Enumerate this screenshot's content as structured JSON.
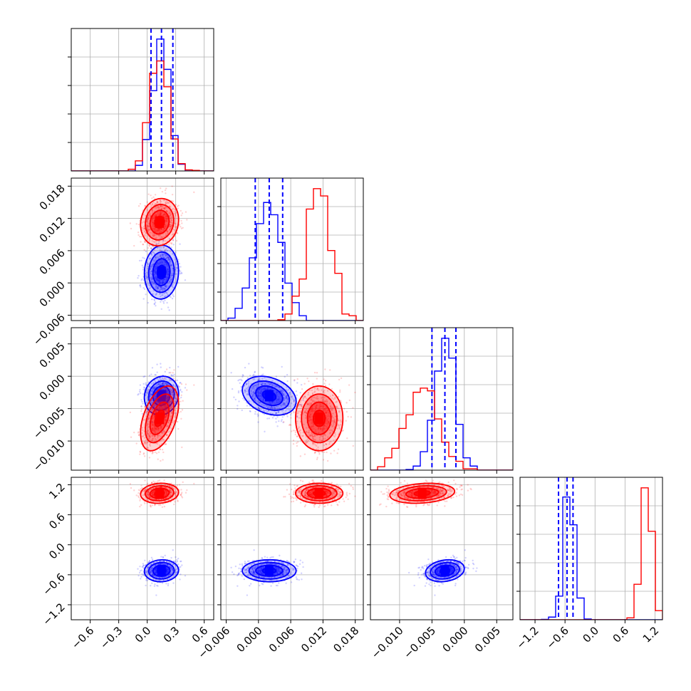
{
  "chart_data": {
    "type": "corner",
    "title": "",
    "n_params": 4,
    "series": [
      {
        "name": "blue",
        "color": "#0000ff",
        "mean": [
          0.15,
          0.002,
          -0.003,
          -0.52
        ],
        "std": [
          0.09,
          0.0025,
          0.0015,
          0.11
        ],
        "corr": [
          [
            1,
            0.05,
            0.1,
            0.05
          ],
          [
            0.05,
            1,
            -0.3,
            0.0
          ],
          [
            0.1,
            -0.3,
            1,
            0.2
          ],
          [
            0.05,
            0.0,
            0.2,
            1
          ]
        ],
        "quantiles": [
          [
            0.04,
            0.15,
            0.27
          ],
          [
            -0.0006,
            0.002,
            0.0045
          ],
          [
            -0.005,
            -0.003,
            -0.0013
          ],
          [
            -0.73,
            -0.56,
            -0.44
          ]
        ]
      },
      {
        "name": "red",
        "color": "#ff0000",
        "mean": [
          0.13,
          0.0113,
          -0.0065,
          1.03
        ],
        "std": [
          0.1,
          0.0022,
          0.0025,
          0.1
        ],
        "corr": [
          [
            1,
            0.1,
            0.45,
            0.1
          ],
          [
            0.1,
            1,
            0.0,
            0.0
          ],
          [
            0.45,
            0.0,
            1,
            0.2
          ],
          [
            0.1,
            0.0,
            0.2,
            1
          ]
        ]
      }
    ],
    "params": [
      {
        "range": [
          -0.8,
          0.7
        ],
        "ticks": [
          -0.6,
          -0.3,
          0.0,
          0.3,
          0.6
        ],
        "tick_labels": [
          "−0.6",
          "−0.3",
          "0.0",
          "0.3",
          "0.6"
        ]
      },
      {
        "range": [
          -0.007,
          0.0195
        ],
        "ticks": [
          -0.006,
          0.0,
          0.006,
          0.012,
          0.018
        ],
        "tick_labels": [
          "−0.006",
          "0.000",
          "0.006",
          "0.012",
          "0.018"
        ]
      },
      {
        "range": [
          -0.0145,
          0.0075
        ],
        "ticks": [
          -0.01,
          -0.005,
          0.0,
          0.005
        ],
        "tick_labels": [
          "−0.010",
          "−0.005",
          "0.000",
          "0.005"
        ]
      },
      {
        "range": [
          -1.5,
          1.35
        ],
        "ticks": [
          -1.2,
          -0.6,
          0.0,
          0.6,
          1.2
        ],
        "tick_labels": [
          "−1.2",
          "−0.6",
          "0.0",
          "0.6",
          "1.2"
        ]
      }
    ],
    "row_ticks": [
      null,
      {
        "ticks": [
          -0.006,
          0.0,
          0.006,
          0.012,
          0.018
        ],
        "tick_labels": [
          "−0.006",
          "0.000",
          "0.006",
          "0.012",
          "0.018"
        ]
      },
      {
        "ticks": [
          -0.01,
          -0.005,
          0.0,
          0.005
        ],
        "tick_labels": [
          "−0.010",
          "−0.005",
          "0.000",
          "0.005"
        ]
      },
      {
        "ticks": [
          -1.2,
          -0.6,
          0.0,
          0.6,
          1.2
        ],
        "tick_labels": [
          "−1.2",
          "−0.6",
          "0.0",
          "0.6",
          "1.2"
        ]
      }
    ],
    "contour_levels_sigma": [
      0.5,
      1.0,
      1.5,
      2.0
    ],
    "grid": true,
    "legend": "none",
    "xlabel": "",
    "ylabel": ""
  }
}
